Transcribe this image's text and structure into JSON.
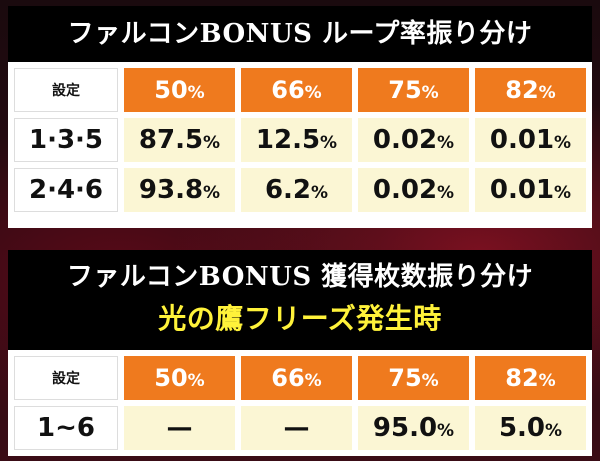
{
  "table1": {
    "title": "ファルコンBONUS ループ率振り分け",
    "setting_label": "設定",
    "columns": [
      "50",
      "66",
      "75",
      "82"
    ],
    "rows": [
      {
        "label": "1·3·5",
        "values": [
          "87.5",
          "12.5",
          "0.02",
          "0.01"
        ]
      },
      {
        "label": "2·4·6",
        "values": [
          "93.8",
          "6.2",
          "0.02",
          "0.01"
        ]
      }
    ]
  },
  "table2": {
    "title": "ファルコンBONUS 獲得枚数振り分け",
    "subtitle": "光の鷹フリーズ発生時",
    "setting_label": "設定",
    "columns": [
      "50",
      "66",
      "75",
      "82"
    ],
    "rows": [
      {
        "label": "1~6",
        "values": [
          "—",
          "—",
          "95.0",
          "5.0"
        ]
      }
    ]
  },
  "unit": "%",
  "colors": {
    "header_orange": "#ef7a1e",
    "cell_cream": "#fbf6d4",
    "subtitle_yellow": "#fff23a"
  }
}
